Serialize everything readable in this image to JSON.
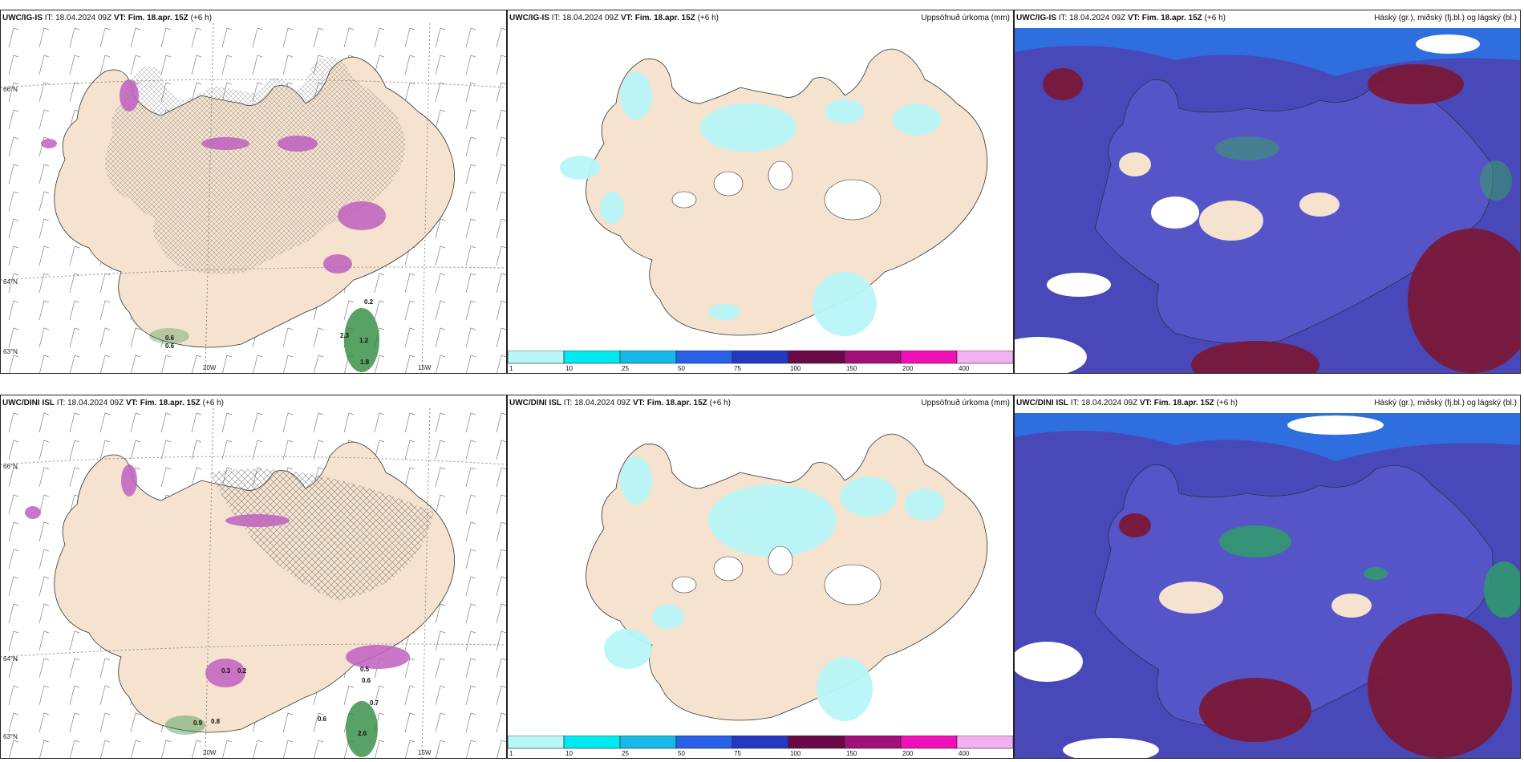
{
  "panels": [
    {
      "model": "UWC/IG-IS",
      "it_label": "IT:",
      "it": "18.04.2024 09Z",
      "vt_label": "VT:",
      "vt": "Fim. 18.apr. 15Z",
      "offset": "(+6 h)",
      "right_title": ""
    },
    {
      "model": "UWC/IG-IS",
      "it_label": "IT:",
      "it": "18.04.2024 09Z",
      "vt_label": "VT:",
      "vt": "Fim. 18.apr. 15Z",
      "offset": "(+6 h)",
      "right_title": "Uppsöfnuð úrkoma (mm)"
    },
    {
      "model": "UWC/IG-IS",
      "it_label": "IT:",
      "it": "18.04.2024 09Z",
      "vt_label": "VT:",
      "vt": "Fim. 18.apr. 15Z",
      "offset": "(+6 h)",
      "right_title": "Háský (gr.), miðský (fj.bl.) og lágský (bl.)"
    },
    {
      "model": "UWC/DINI ISL",
      "it_label": "IT:",
      "it": "18.04.2024 09Z",
      "vt_label": "VT:",
      "vt": "Fim. 18.apr. 15Z",
      "offset": "(+6 h)",
      "right_title": ""
    },
    {
      "model": "UWC/DINI ISL",
      "it_label": "IT:",
      "it": "18.04.2024 09Z",
      "vt_label": "VT:",
      "vt": "Fim. 18.apr. 15Z",
      "offset": "(+6 h)",
      "right_title": "Uppsöfnuð úrkoma (mm)"
    },
    {
      "model": "UWC/DINI ISL",
      "it_label": "IT:",
      "it": "18.04.2024 09Z",
      "vt_label": "VT:",
      "vt": "Fim. 18.apr. 15Z",
      "offset": "(+6 h)",
      "right_title": "Háský (gr.), miðský (fj.bl.) og lágský (bl.)"
    }
  ],
  "grid_labels": {
    "lat66": "66°N",
    "lat64": "64°N",
    "lat63": "63°N",
    "lon20": "20W",
    "lon15": "15W"
  },
  "colorbar": {
    "ticks": [
      "1",
      "10",
      "25",
      "50",
      "75",
      "100",
      "150",
      "200",
      "400"
    ],
    "colors": [
      "#b8f6f8",
      "#00e8f0",
      "#18b8e8",
      "#2860e8",
      "#2438c0",
      "#6a0848",
      "#a01078",
      "#f010b8",
      "#f4b0f0"
    ]
  },
  "colors": {
    "land": "#f5e3cf",
    "precip_light": "#b8f6f8",
    "snow_pink": "#e070e0",
    "rain_green": "#2e8b3e",
    "high_cloud": "#5050c0",
    "low_cloud": "#7a1838"
  },
  "precip_labels": {
    "ig": [
      "0.6",
      "0.6",
      "0.8",
      "2.3",
      "1.2",
      "1.8",
      "0.2"
    ],
    "dini": [
      "0.3",
      "0.2",
      "0.9",
      "0.8",
      "0.6",
      "0.7",
      "2.6",
      "0.6",
      "0.5"
    ]
  }
}
